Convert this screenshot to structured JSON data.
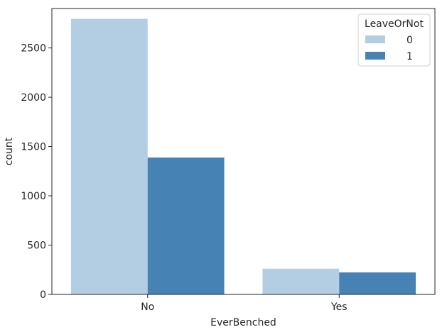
{
  "chart_data": {
    "type": "bar",
    "xlabel": "EverBenched",
    "ylabel": "count",
    "categories": [
      "No",
      "Yes"
    ],
    "ylim": [
      0,
      2900
    ],
    "yticks": [
      0,
      500,
      1000,
      1500,
      2000,
      2500
    ],
    "grid": false,
    "legend": {
      "title": "LeaveOrNot",
      "placement": "top-right"
    },
    "series": [
      {
        "name": "0",
        "color": "#b3cde3",
        "values": [
          2795,
          261
        ]
      },
      {
        "name": "1",
        "color": "#4682b4",
        "values": [
          1388,
          223
        ]
      }
    ]
  }
}
